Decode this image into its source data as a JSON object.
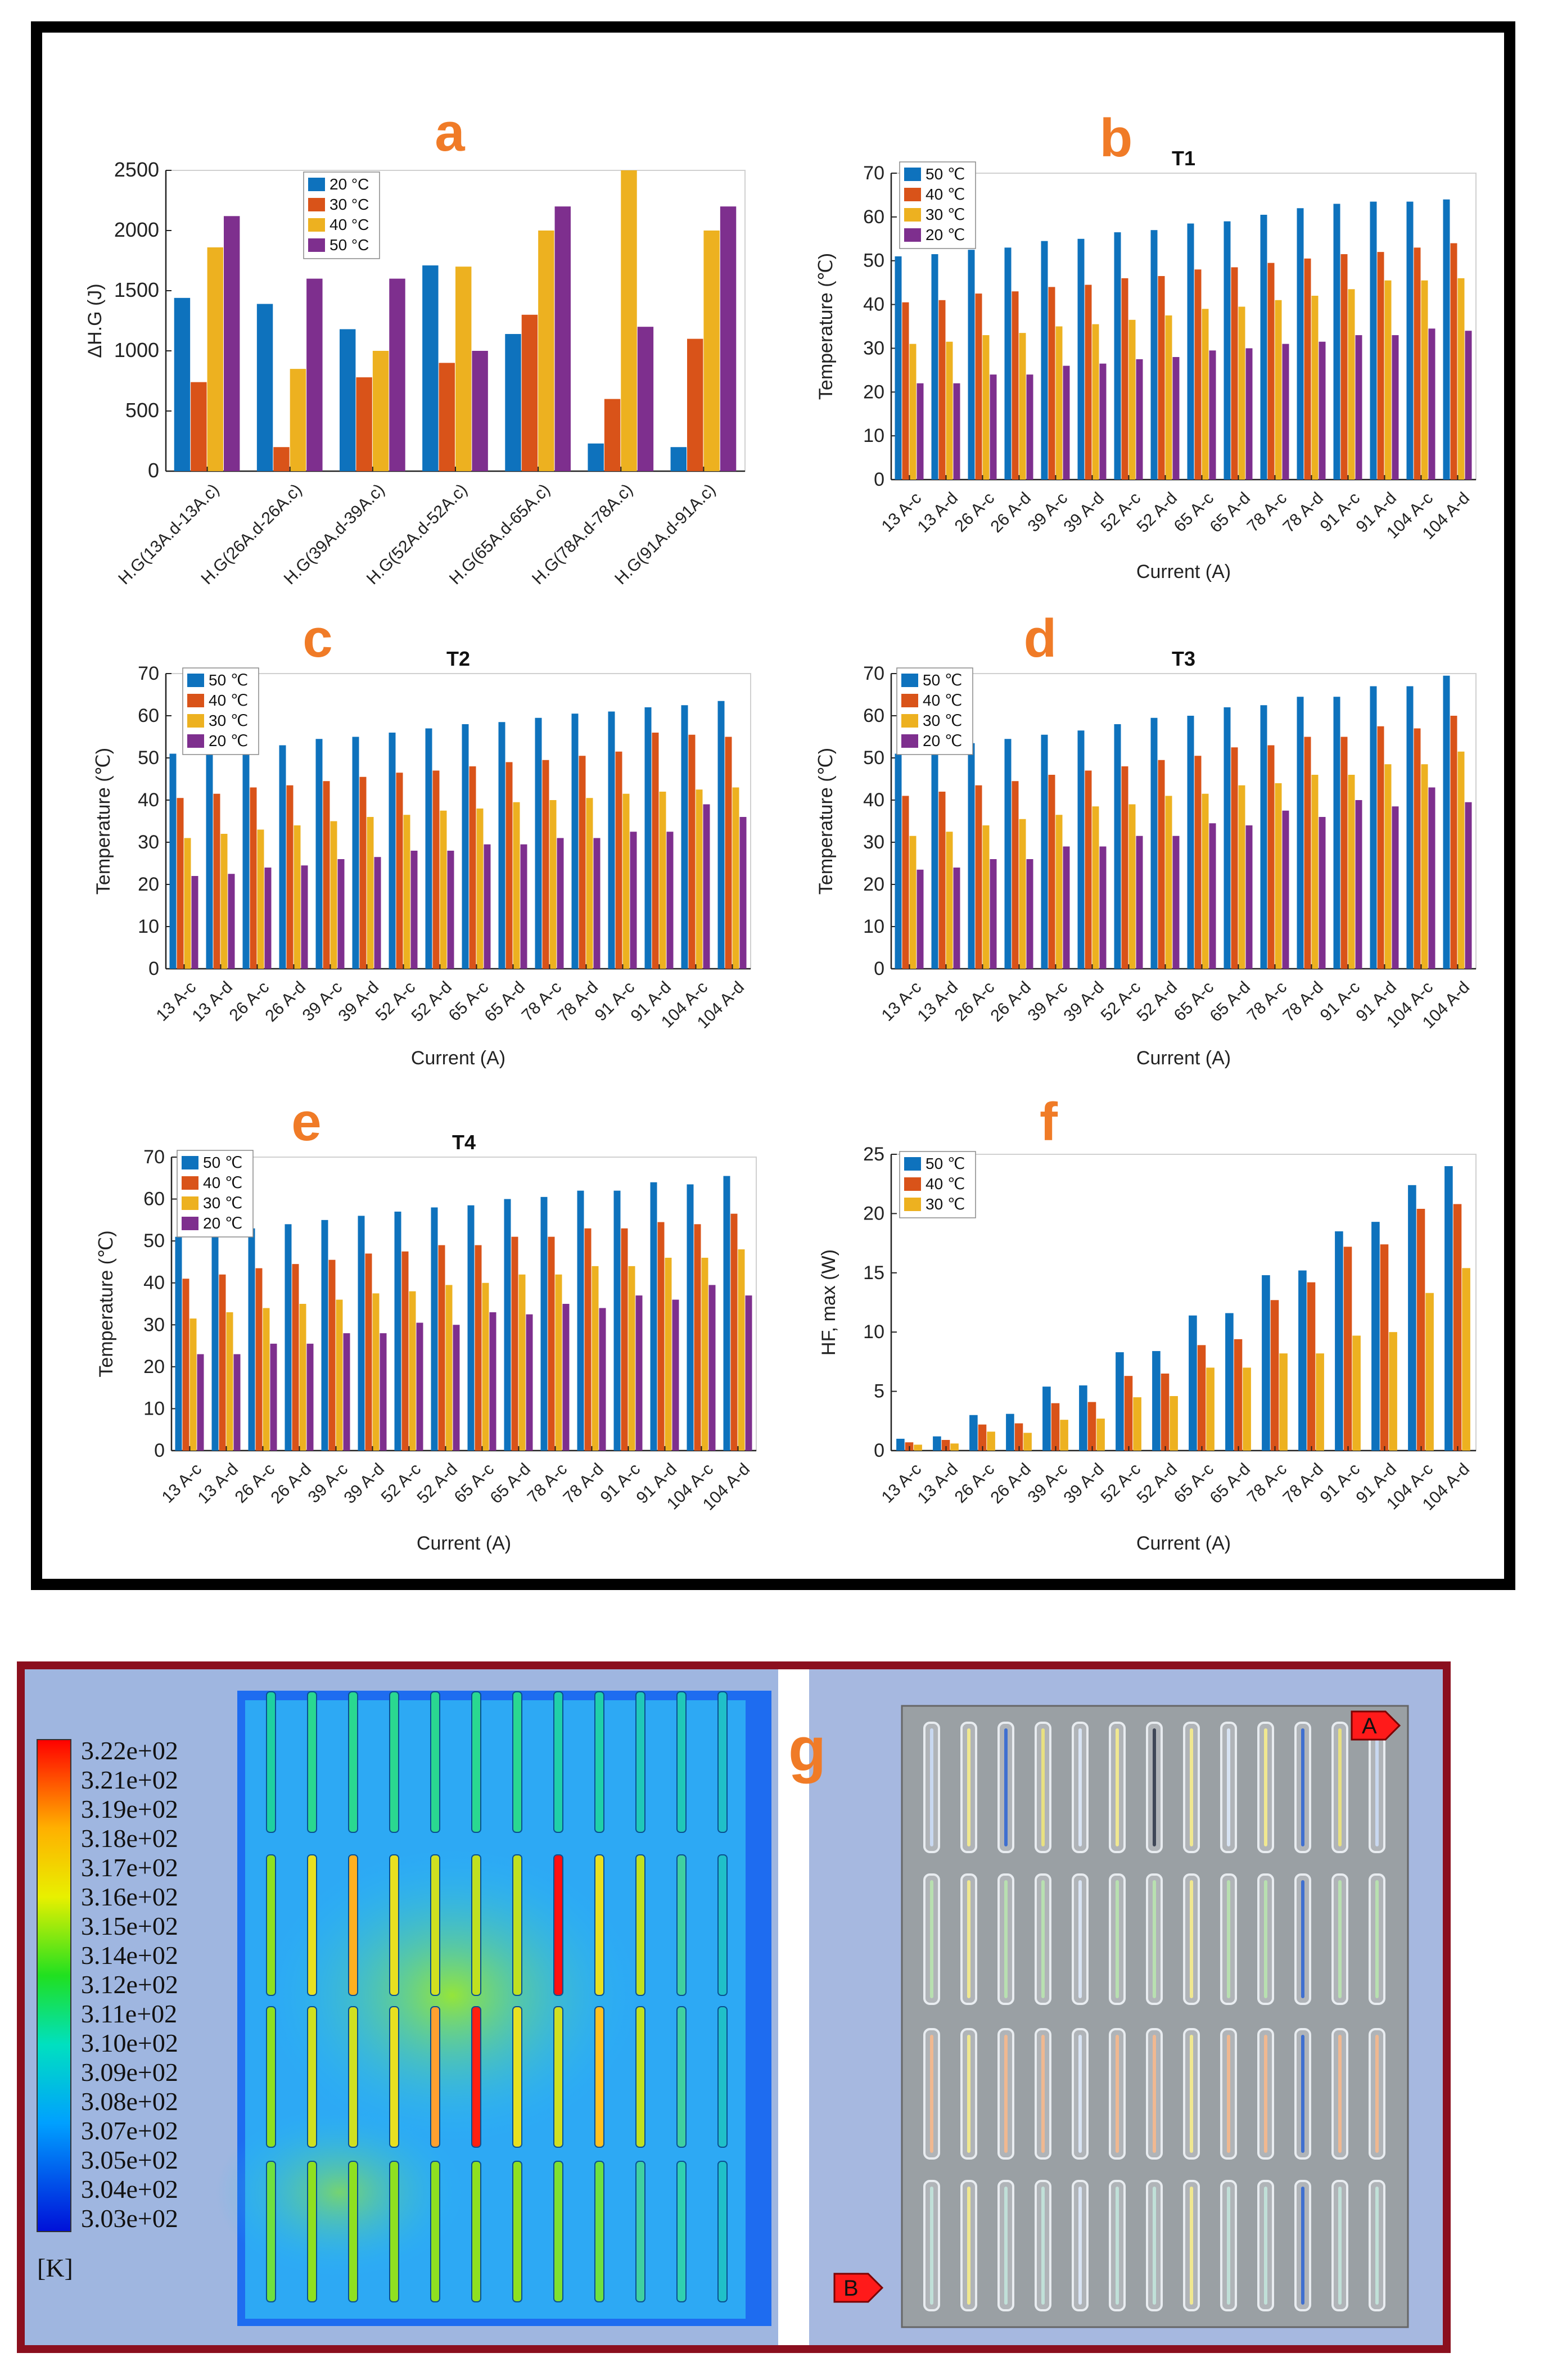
{
  "colors": {
    "c50": "#0e72bd",
    "c40": "#d95319",
    "c30": "#edb120",
    "c20": "#7e2f8e",
    "letter": "#f07b27"
  },
  "charts": [
    {
      "id": "a",
      "letter": "a",
      "type": "bar",
      "title": "",
      "xlabel": "",
      "ylabel": "ΔH.G (J)",
      "ylim": [
        0,
        2500
      ],
      "yticks": [
        "0",
        "500",
        "1000",
        "1500",
        "2000",
        "2500"
      ],
      "categories": [
        "H.G(13A.d-13A.c)",
        "H.G(26A.d-26A.c)",
        "H.G(39A.d-39A.c)",
        "H.G(52A.d-52A.c)",
        "H.G(65A.d-65A.c)",
        "H.G(78A.d-78A.c)",
        "H.G(91A.d-91A.c)"
      ],
      "legend": [
        "20 °C",
        "30 °C",
        "40 °C",
        "50 °C"
      ],
      "series": [
        {
          "name": "20 °C",
          "color": "#0e72bd",
          "values": [
            1440,
            1390,
            1180,
            1710,
            1140,
            230,
            200
          ]
        },
        {
          "name": "30 °C",
          "color": "#d95319",
          "values": [
            740,
            200,
            780,
            900,
            1300,
            600,
            1100
          ]
        },
        {
          "name": "40 °C",
          "color": "#edb120",
          "values": [
            1860,
            850,
            1000,
            1700,
            2000,
            2500,
            2000
          ]
        },
        {
          "name": "50 °C",
          "color": "#7e2f8e",
          "values": [
            2120,
            1600,
            1600,
            1000,
            2200,
            1200,
            2200
          ]
        }
      ]
    },
    {
      "id": "b",
      "letter": "b",
      "type": "bar",
      "title": "T1",
      "xlabel": "Current (A)",
      "ylabel": "Temperature (℃)",
      "ylim": [
        0,
        70
      ],
      "yticks": [
        "0",
        "10",
        "20",
        "30",
        "40",
        "50",
        "60",
        "70"
      ],
      "categories": [
        "13 A-c",
        "13 A-d",
        "26 A-c",
        "26 A-d",
        "39 A-c",
        "39 A-d",
        "52 A-c",
        "52 A-d",
        "65 A-c",
        "65 A-d",
        "78 A-c",
        "78 A-d",
        "91 A-c",
        "91 A-d",
        "104 A-c",
        "104 A-d"
      ],
      "legend": [
        "50 ℃",
        "40 ℃",
        "30 ℃",
        "20 ℃"
      ],
      "series": [
        {
          "name": "50 ℃",
          "color": "#0e72bd",
          "values": [
            51,
            51.5,
            52.5,
            53,
            54.5,
            55,
            56.5,
            57,
            58.5,
            59,
            60.5,
            62,
            63,
            63.5,
            63.5,
            64
          ]
        },
        {
          "name": "40 ℃",
          "color": "#d95319",
          "values": [
            40.5,
            41,
            42.5,
            43,
            44,
            44.5,
            46,
            46.5,
            48,
            48.5,
            49.5,
            50.5,
            51.5,
            52,
            53,
            54
          ]
        },
        {
          "name": "30 ℃",
          "color": "#edb120",
          "values": [
            31,
            31.5,
            33,
            33.5,
            35,
            35.5,
            36.5,
            37.5,
            39,
            39.5,
            41,
            42,
            43.5,
            45.5,
            45.5,
            46
          ]
        },
        {
          "name": "20 ℃",
          "color": "#7e2f8e",
          "values": [
            22,
            22,
            24,
            24,
            26,
            26.5,
            27.5,
            28,
            29.5,
            30,
            31,
            31.5,
            33,
            33,
            34.5,
            34
          ]
        }
      ]
    },
    {
      "id": "c",
      "letter": "c",
      "type": "bar",
      "title": "T2",
      "xlabel": "Current (A)",
      "ylabel": "Temperature (℃)",
      "ylim": [
        0,
        70
      ],
      "yticks": [
        "0",
        "10",
        "20",
        "30",
        "40",
        "50",
        "60",
        "70"
      ],
      "categories": [
        "13 A-c",
        "13 A-d",
        "26 A-c",
        "26 A-d",
        "39 A-c",
        "39 A-d",
        "52 A-c",
        "52 A-d",
        "65 A-c",
        "65 A-d",
        "78 A-c",
        "78 A-d",
        "91 A-c",
        "91 A-d",
        "104 A-c",
        "104 A-d"
      ],
      "legend": [
        "50 ℃",
        "40 ℃",
        "30 ℃",
        "20 ℃"
      ],
      "series": [
        {
          "name": "50 ℃",
          "color": "#0e72bd",
          "values": [
            51,
            51.5,
            52.5,
            53,
            54.5,
            55,
            56,
            57,
            58,
            58.5,
            59.5,
            60.5,
            61,
            62,
            62.5,
            63.5
          ]
        },
        {
          "name": "40 ℃",
          "color": "#d95319",
          "values": [
            40.5,
            41.5,
            43,
            43.5,
            44.5,
            45.5,
            46.5,
            47,
            48,
            49,
            49.5,
            50.5,
            51.5,
            56,
            55.5,
            55
          ]
        },
        {
          "name": "30 ℃",
          "color": "#edb120",
          "values": [
            31,
            32,
            33,
            34,
            35,
            36,
            36.5,
            37.5,
            38,
            39.5,
            40,
            40.5,
            41.5,
            42,
            42.5,
            43
          ]
        },
        {
          "name": "20 ℃",
          "color": "#7e2f8e",
          "values": [
            22,
            22.5,
            24,
            24.5,
            26,
            26.5,
            28,
            28,
            29.5,
            29.5,
            31,
            31,
            32.5,
            32.5,
            39,
            36
          ]
        }
      ]
    },
    {
      "id": "d",
      "letter": "d",
      "type": "bar",
      "title": "T3",
      "xlabel": "Current (A)",
      "ylabel": "Temperature (℃)",
      "ylim": [
        0,
        70
      ],
      "yticks": [
        "0",
        "10",
        "20",
        "30",
        "40",
        "50",
        "60",
        "70"
      ],
      "categories": [
        "13 A-c",
        "13 A-d",
        "26 A-c",
        "26 A-d",
        "39 A-c",
        "39 A-d",
        "52 A-c",
        "52 A-d",
        "65 A-c",
        "65 A-d",
        "78 A-c",
        "78 A-d",
        "91 A-c",
        "91 A-d",
        "104 A-c",
        "104 A-d"
      ],
      "legend": [
        "50 ℃",
        "40 ℃",
        "30 ℃",
        "20 ℃"
      ],
      "series": [
        {
          "name": "50 ℃",
          "color": "#0e72bd",
          "values": [
            51,
            52,
            53.5,
            54.5,
            55.5,
            56.5,
            58,
            59.5,
            60,
            62,
            62.5,
            64.5,
            64.5,
            67,
            67,
            69.5
          ]
        },
        {
          "name": "40 ℃",
          "color": "#d95319",
          "values": [
            41,
            42,
            43.5,
            44.5,
            46,
            47,
            48,
            49.5,
            50.5,
            52.5,
            53,
            55,
            55,
            57.5,
            57,
            60
          ]
        },
        {
          "name": "30 ℃",
          "color": "#edb120",
          "values": [
            31.5,
            32.5,
            34,
            35.5,
            36.5,
            38.5,
            39,
            41,
            41.5,
            43.5,
            44,
            46,
            46,
            48.5,
            48.5,
            51.5
          ]
        },
        {
          "name": "20 ℃",
          "color": "#7e2f8e",
          "values": [
            23.5,
            24,
            26,
            26,
            29,
            29,
            31.5,
            31.5,
            34.5,
            34,
            37.5,
            36,
            40,
            38.5,
            43,
            39.5
          ]
        }
      ]
    },
    {
      "id": "e",
      "letter": "e",
      "type": "bar",
      "title": "T4",
      "xlabel": "Current (A)",
      "ylabel": "Temperature (℃)",
      "ylim": [
        0,
        70
      ],
      "yticks": [
        "0",
        "10",
        "20",
        "30",
        "40",
        "50",
        "60",
        "70"
      ],
      "categories": [
        "13 A-c",
        "13 A-d",
        "26 A-c",
        "26 A-d",
        "39 A-c",
        "39 A-d",
        "52 A-c",
        "52 A-d",
        "65 A-c",
        "65 A-d",
        "78 A-c",
        "78 A-d",
        "91 A-c",
        "91 A-d",
        "104 A-c",
        "104 A-d"
      ],
      "legend": [
        "50 ℃",
        "40 ℃",
        "30 ℃",
        "20 ℃"
      ],
      "series": [
        {
          "name": "50 ℃",
          "color": "#0e72bd",
          "values": [
            51,
            52,
            53,
            54,
            55,
            56,
            57,
            58,
            58.5,
            60,
            60.5,
            62,
            62,
            64,
            63.5,
            65.5
          ]
        },
        {
          "name": "40 ℃",
          "color": "#d95319",
          "values": [
            41,
            42,
            43.5,
            44.5,
            45.5,
            47,
            47.5,
            49,
            49,
            51,
            51,
            53,
            53,
            54.5,
            54,
            56.5
          ]
        },
        {
          "name": "30 ℃",
          "color": "#edb120",
          "values": [
            31.5,
            33,
            34,
            35,
            36,
            37.5,
            38,
            39.5,
            40,
            42,
            42,
            44,
            44,
            46,
            46,
            48
          ]
        },
        {
          "name": "20 ℃",
          "color": "#7e2f8e",
          "values": [
            23,
            23,
            25.5,
            25.5,
            28,
            28,
            30.5,
            30,
            33,
            32.5,
            35,
            34,
            37,
            36,
            39.5,
            37
          ]
        }
      ]
    },
    {
      "id": "f",
      "letter": "f",
      "type": "bar",
      "title": "",
      "xlabel": "Current (A)",
      "ylabel": "HF, max (W)",
      "ylim": [
        0,
        25
      ],
      "yticks": [
        "0",
        "5",
        "10",
        "15",
        "20",
        "25"
      ],
      "categories": [
        "13 A-c",
        "13 A-d",
        "26 A-c",
        "26 A-d",
        "39 A-c",
        "39 A-d",
        "52 A-c",
        "52 A-d",
        "65 A-c",
        "65 A-d",
        "78 A-c",
        "78 A-d",
        "91 A-c",
        "91 A-d",
        "104 A-c",
        "104 A-d"
      ],
      "legend": [
        "50 ℃",
        "40 ℃",
        "30 ℃"
      ],
      "series": [
        {
          "name": "50 ℃",
          "color": "#0e72bd",
          "values": [
            1,
            1.2,
            3,
            3.1,
            5.4,
            5.5,
            8.3,
            8.4,
            11.4,
            11.6,
            14.8,
            15.2,
            18.5,
            19.3,
            22.4,
            24
          ]
        },
        {
          "name": "40 ℃",
          "color": "#d95319",
          "values": [
            0.7,
            0.9,
            2.2,
            2.3,
            4,
            4.1,
            6.3,
            6.5,
            8.9,
            9.4,
            12.7,
            14.2,
            17.2,
            17.4,
            20.4,
            20.8
          ]
        },
        {
          "name": "30 ℃",
          "color": "#edb120",
          "values": [
            0.5,
            0.6,
            1.6,
            1.5,
            2.6,
            2.7,
            4.5,
            4.6,
            7,
            7,
            8.2,
            8.2,
            9.7,
            10,
            13.3,
            15.4
          ]
        }
      ]
    }
  ],
  "sim": {
    "letter": "g",
    "colorbar_labels": [
      "3.22e+02",
      "3.21e+02",
      "3.19e+02",
      "3.18e+02",
      "3.17e+02",
      "3.16e+02",
      "3.15e+02",
      "3.14e+02",
      "3.12e+02",
      "3.11e+02",
      "3.10e+02",
      "3.09e+02",
      "3.08e+02",
      "3.07e+02",
      "3.05e+02",
      "3.04e+02",
      "3.03e+02"
    ],
    "unit": "[K]",
    "marker_a": "A",
    "marker_b": "B"
  }
}
